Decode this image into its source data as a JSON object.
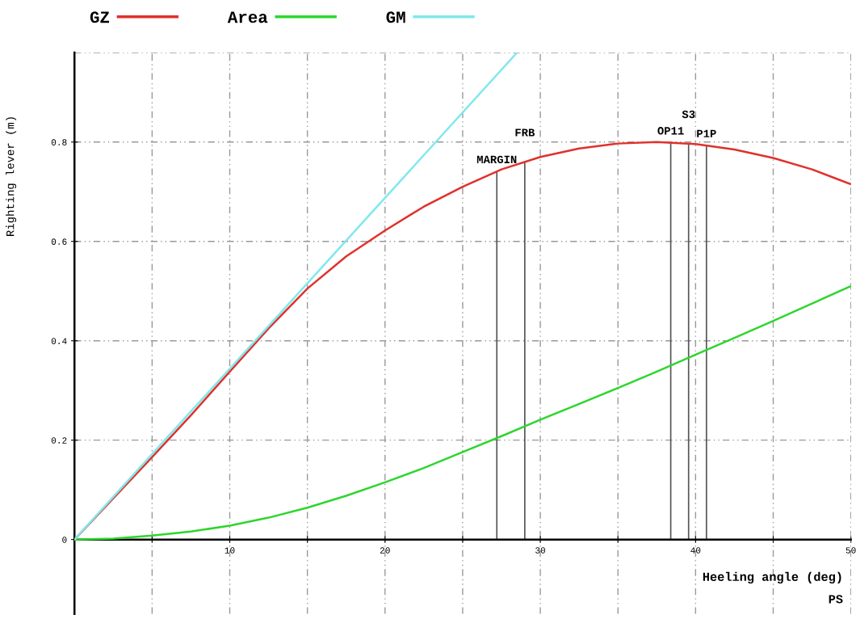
{
  "chart_data": {
    "type": "line",
    "xlabel": "Heeling angle (deg)",
    "ylabel": "Righting lever (m)",
    "series": [
      {
        "name": "GZ",
        "color": "#e0312c",
        "x": [
          0,
          2.5,
          5,
          7.5,
          10,
          12.5,
          15,
          17.5,
          20,
          22.5,
          25,
          27.5,
          30,
          32.5,
          35,
          37.5,
          40,
          42.5,
          45,
          47.5,
          50
        ],
        "values": [
          0,
          0.083,
          0.166,
          0.25,
          0.338,
          0.425,
          0.505,
          0.57,
          0.622,
          0.67,
          0.71,
          0.745,
          0.77,
          0.787,
          0.797,
          0.8,
          0.796,
          0.785,
          0.768,
          0.745,
          0.715
        ]
      },
      {
        "name": "Area",
        "color": "#2ed62e",
        "x": [
          0,
          2.5,
          5,
          7.5,
          10,
          12.5,
          15,
          17.5,
          20,
          22.5,
          25,
          27.5,
          30,
          32.5,
          35,
          37.5,
          40,
          42.5,
          45,
          47.5,
          50
        ],
        "values": [
          0,
          0.002,
          0.008,
          0.016,
          0.028,
          0.044,
          0.064,
          0.088,
          0.115,
          0.144,
          0.176,
          0.208,
          0.241,
          0.273,
          0.305,
          0.338,
          0.372,
          0.406,
          0.44,
          0.475,
          0.51
        ]
      },
      {
        "name": "GM",
        "color": "#7fe8ec",
        "x": [
          0,
          28.5
        ],
        "values": [
          0,
          0.98
        ]
      }
    ],
    "xlim": [
      0,
      50
    ],
    "ylim": [
      -0.15,
      0.98
    ],
    "xticks": [
      {
        "value": 0,
        "label": null
      },
      {
        "value": 5,
        "label": null
      },
      10,
      {
        "value": 15,
        "label": null
      },
      20,
      {
        "value": 25,
        "label": null
      },
      30,
      {
        "value": 35,
        "label": null
      },
      40,
      {
        "value": 45,
        "label": null
      },
      50
    ],
    "yticks": [
      0,
      0.2,
      0.4,
      0.6,
      0.8
    ],
    "ref_lines": [
      {
        "axis": "x",
        "value": 27.2,
        "label": "MARGIN",
        "color": "#555555"
      },
      {
        "axis": "x",
        "value": 29.0,
        "label": "FRB",
        "color": "#555555"
      },
      {
        "axis": "x",
        "value": 38.4,
        "label": "OP11",
        "color": "#555555"
      },
      {
        "axis": "x",
        "value": 39.55,
        "label": "S3",
        "color": "#555555"
      },
      {
        "axis": "x",
        "value": 40.7,
        "label": "P1P",
        "color": "#555555"
      }
    ],
    "annotations": [
      "PS"
    ],
    "grid": true,
    "legend": "top",
    "line_style": "solid"
  }
}
